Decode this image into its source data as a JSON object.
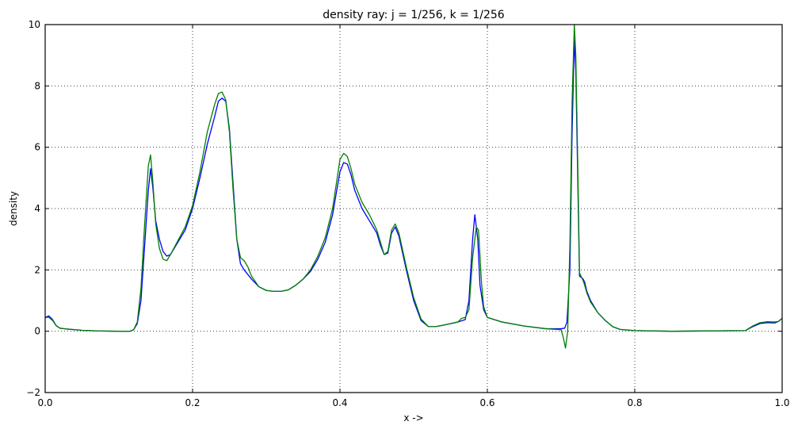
{
  "chart_data": {
    "type": "line",
    "title": "density ray: j = 1/256, k = 1/256",
    "xlabel": "x ->",
    "ylabel": "density",
    "xlim": [
      0.0,
      1.0
    ],
    "ylim": [
      -2,
      10
    ],
    "x_ticks": [
      "0.0",
      "0.2",
      "0.4",
      "0.6",
      "0.8",
      "1.0"
    ],
    "y_ticks": [
      "−2",
      "0",
      "2",
      "4",
      "6",
      "8",
      "10"
    ],
    "grid": true,
    "series": [
      {
        "color": "#0000ff",
        "points": [
          [
            0.0,
            0.45
          ],
          [
            0.005,
            0.5
          ],
          [
            0.01,
            0.38
          ],
          [
            0.015,
            0.18
          ],
          [
            0.02,
            0.1
          ],
          [
            0.03,
            0.07
          ],
          [
            0.05,
            0.03
          ],
          [
            0.07,
            0.01
          ],
          [
            0.1,
            0.0
          ],
          [
            0.115,
            0.0
          ],
          [
            0.12,
            0.05
          ],
          [
            0.125,
            0.25
          ],
          [
            0.13,
            1.0
          ],
          [
            0.135,
            2.8
          ],
          [
            0.14,
            4.6
          ],
          [
            0.143,
            5.3
          ],
          [
            0.146,
            4.7
          ],
          [
            0.15,
            3.6
          ],
          [
            0.155,
            3.0
          ],
          [
            0.16,
            2.6
          ],
          [
            0.165,
            2.45
          ],
          [
            0.17,
            2.5
          ],
          [
            0.18,
            2.9
          ],
          [
            0.19,
            3.3
          ],
          [
            0.2,
            4.0
          ],
          [
            0.21,
            5.0
          ],
          [
            0.22,
            6.1
          ],
          [
            0.23,
            7.0
          ],
          [
            0.235,
            7.5
          ],
          [
            0.24,
            7.6
          ],
          [
            0.245,
            7.5
          ],
          [
            0.25,
            6.6
          ],
          [
            0.255,
            4.8
          ],
          [
            0.26,
            3.0
          ],
          [
            0.265,
            2.2
          ],
          [
            0.27,
            2.0
          ],
          [
            0.28,
            1.7
          ],
          [
            0.29,
            1.45
          ],
          [
            0.3,
            1.33
          ],
          [
            0.31,
            1.3
          ],
          [
            0.32,
            1.3
          ],
          [
            0.33,
            1.35
          ],
          [
            0.34,
            1.5
          ],
          [
            0.35,
            1.7
          ],
          [
            0.36,
            1.95
          ],
          [
            0.37,
            2.35
          ],
          [
            0.38,
            2.9
          ],
          [
            0.39,
            3.8
          ],
          [
            0.395,
            4.5
          ],
          [
            0.4,
            5.2
          ],
          [
            0.405,
            5.5
          ],
          [
            0.41,
            5.45
          ],
          [
            0.415,
            5.1
          ],
          [
            0.42,
            4.6
          ],
          [
            0.43,
            4.0
          ],
          [
            0.44,
            3.6
          ],
          [
            0.45,
            3.2
          ],
          [
            0.455,
            2.8
          ],
          [
            0.46,
            2.5
          ],
          [
            0.465,
            2.55
          ],
          [
            0.47,
            3.2
          ],
          [
            0.475,
            3.4
          ],
          [
            0.48,
            3.1
          ],
          [
            0.49,
            2.0
          ],
          [
            0.5,
            1.0
          ],
          [
            0.51,
            0.35
          ],
          [
            0.52,
            0.15
          ],
          [
            0.53,
            0.15
          ],
          [
            0.545,
            0.22
          ],
          [
            0.56,
            0.3
          ],
          [
            0.57,
            0.38
          ],
          [
            0.575,
            1.0
          ],
          [
            0.58,
            3.0
          ],
          [
            0.583,
            3.8
          ],
          [
            0.587,
            3.0
          ],
          [
            0.59,
            1.5
          ],
          [
            0.595,
            0.7
          ],
          [
            0.6,
            0.45
          ],
          [
            0.62,
            0.3
          ],
          [
            0.65,
            0.17
          ],
          [
            0.68,
            0.08
          ],
          [
            0.7,
            0.08
          ],
          [
            0.705,
            0.1
          ],
          [
            0.708,
            0.3
          ],
          [
            0.712,
            2.0
          ],
          [
            0.715,
            6.5
          ],
          [
            0.718,
            9.5
          ],
          [
            0.72,
            8.5
          ],
          [
            0.723,
            4.5
          ],
          [
            0.725,
            1.8
          ],
          [
            0.73,
            1.7
          ],
          [
            0.732,
            1.6
          ],
          [
            0.735,
            1.3
          ],
          [
            0.74,
            1.0
          ],
          [
            0.75,
            0.6
          ],
          [
            0.76,
            0.35
          ],
          [
            0.77,
            0.15
          ],
          [
            0.78,
            0.06
          ],
          [
            0.8,
            0.02
          ],
          [
            0.85,
            0.0
          ],
          [
            0.95,
            0.02
          ],
          [
            0.96,
            0.15
          ],
          [
            0.97,
            0.25
          ],
          [
            0.98,
            0.28
          ],
          [
            0.99,
            0.27
          ],
          [
            0.995,
            0.32
          ],
          [
            1.0,
            0.42
          ]
        ]
      },
      {
        "color": "#008000",
        "points": [
          [
            0.0,
            0.45
          ],
          [
            0.005,
            0.45
          ],
          [
            0.01,
            0.35
          ],
          [
            0.015,
            0.18
          ],
          [
            0.02,
            0.1
          ],
          [
            0.03,
            0.07
          ],
          [
            0.05,
            0.03
          ],
          [
            0.07,
            0.01
          ],
          [
            0.1,
            0.0
          ],
          [
            0.115,
            0.0
          ],
          [
            0.12,
            0.05
          ],
          [
            0.125,
            0.3
          ],
          [
            0.13,
            1.4
          ],
          [
            0.135,
            3.5
          ],
          [
            0.14,
            5.4
          ],
          [
            0.143,
            5.75
          ],
          [
            0.146,
            4.9
          ],
          [
            0.15,
            3.5
          ],
          [
            0.155,
            2.7
          ],
          [
            0.16,
            2.35
          ],
          [
            0.165,
            2.3
          ],
          [
            0.17,
            2.5
          ],
          [
            0.18,
            2.95
          ],
          [
            0.19,
            3.4
          ],
          [
            0.2,
            4.1
          ],
          [
            0.21,
            5.2
          ],
          [
            0.22,
            6.5
          ],
          [
            0.23,
            7.4
          ],
          [
            0.235,
            7.75
          ],
          [
            0.24,
            7.8
          ],
          [
            0.245,
            7.55
          ],
          [
            0.25,
            6.5
          ],
          [
            0.255,
            4.6
          ],
          [
            0.26,
            3.0
          ],
          [
            0.265,
            2.4
          ],
          [
            0.27,
            2.3
          ],
          [
            0.275,
            2.1
          ],
          [
            0.28,
            1.8
          ],
          [
            0.29,
            1.45
          ],
          [
            0.3,
            1.33
          ],
          [
            0.31,
            1.3
          ],
          [
            0.32,
            1.3
          ],
          [
            0.33,
            1.35
          ],
          [
            0.34,
            1.5
          ],
          [
            0.35,
            1.7
          ],
          [
            0.36,
            2.0
          ],
          [
            0.37,
            2.45
          ],
          [
            0.38,
            3.05
          ],
          [
            0.39,
            4.0
          ],
          [
            0.395,
            4.8
          ],
          [
            0.4,
            5.6
          ],
          [
            0.405,
            5.8
          ],
          [
            0.41,
            5.7
          ],
          [
            0.415,
            5.3
          ],
          [
            0.42,
            4.8
          ],
          [
            0.43,
            4.2
          ],
          [
            0.44,
            3.8
          ],
          [
            0.45,
            3.3
          ],
          [
            0.455,
            2.9
          ],
          [
            0.46,
            2.5
          ],
          [
            0.465,
            2.6
          ],
          [
            0.47,
            3.3
          ],
          [
            0.475,
            3.5
          ],
          [
            0.48,
            3.2
          ],
          [
            0.49,
            2.1
          ],
          [
            0.5,
            1.1
          ],
          [
            0.51,
            0.4
          ],
          [
            0.52,
            0.15
          ],
          [
            0.53,
            0.15
          ],
          [
            0.545,
            0.22
          ],
          [
            0.56,
            0.3
          ],
          [
            0.565,
            0.42
          ],
          [
            0.57,
            0.45
          ],
          [
            0.575,
            0.7
          ],
          [
            0.58,
            2.4
          ],
          [
            0.585,
            3.4
          ],
          [
            0.588,
            3.3
          ],
          [
            0.592,
            1.6
          ],
          [
            0.595,
            0.8
          ],
          [
            0.6,
            0.45
          ],
          [
            0.62,
            0.3
          ],
          [
            0.65,
            0.17
          ],
          [
            0.68,
            0.08
          ],
          [
            0.7,
            0.05
          ],
          [
            0.703,
            -0.2
          ],
          [
            0.706,
            -0.55
          ],
          [
            0.709,
            0.0
          ],
          [
            0.712,
            2.8
          ],
          [
            0.715,
            7.5
          ],
          [
            0.718,
            10.0
          ],
          [
            0.72,
            9.0
          ],
          [
            0.723,
            5.0
          ],
          [
            0.725,
            1.9
          ],
          [
            0.73,
            1.65
          ],
          [
            0.732,
            1.5
          ],
          [
            0.735,
            1.25
          ],
          [
            0.74,
            0.95
          ],
          [
            0.75,
            0.6
          ],
          [
            0.76,
            0.35
          ],
          [
            0.77,
            0.15
          ],
          [
            0.78,
            0.06
          ],
          [
            0.8,
            0.02
          ],
          [
            0.85,
            0.0
          ],
          [
            0.95,
            0.02
          ],
          [
            0.96,
            0.17
          ],
          [
            0.97,
            0.28
          ],
          [
            0.98,
            0.31
          ],
          [
            0.99,
            0.3
          ],
          [
            0.995,
            0.32
          ],
          [
            1.0,
            0.42
          ]
        ]
      }
    ]
  }
}
